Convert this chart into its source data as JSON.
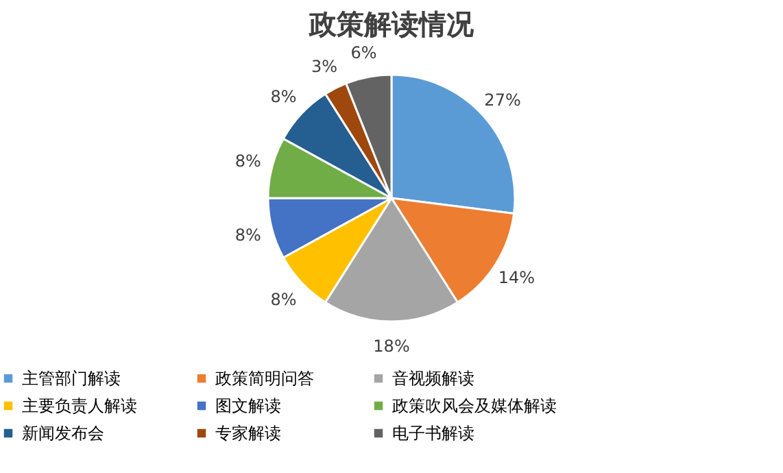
{
  "chart_data": {
    "type": "pie",
    "title": "政策解读情况",
    "categories": [
      "主管部门解读",
      "政策简明问答",
      "音视频解读",
      "主要负责人解读",
      "图文解读",
      "政策吹风会及媒体解读",
      "新闻发布会",
      "专家解读",
      "电子书解读"
    ],
    "values": [
      27,
      14,
      18,
      8,
      8,
      8,
      8,
      3,
      6
    ],
    "value_labels": [
      "27%",
      "14%",
      "18%",
      "8%",
      "8%",
      "8%",
      "8%",
      "3%",
      "6%"
    ],
    "colors": [
      "#5b9bd5",
      "#ed7d31",
      "#a5a5a5",
      "#ffc000",
      "#4472c4",
      "#70ad47",
      "#255e91",
      "#9e480e",
      "#636363"
    ],
    "legend": "bottom"
  }
}
